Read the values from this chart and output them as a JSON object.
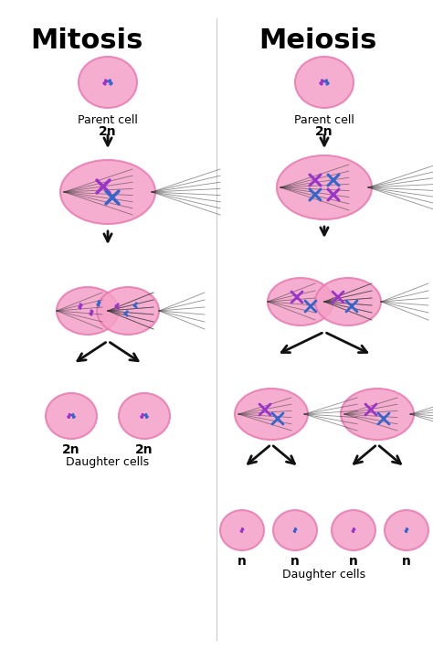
{
  "title_mitosis": "Mitosis",
  "title_meiosis": "Meiosis",
  "bg_color": "#ffffff",
  "cell_fill": "#f5a0c8",
  "cell_edge": "#e87ab0",
  "cell_alpha": 0.85,
  "dividing_cell_fill": "#f5a0c8",
  "text_color": "#000000",
  "label_parent": "Parent cell",
  "label_2n": "2n",
  "label_n": "n",
  "label_daughter": "Daughter cells",
  "arrow_color": "#111111",
  "chr_color1": "#9933cc",
  "chr_color2": "#3366cc",
  "spindle_color": "#333333"
}
